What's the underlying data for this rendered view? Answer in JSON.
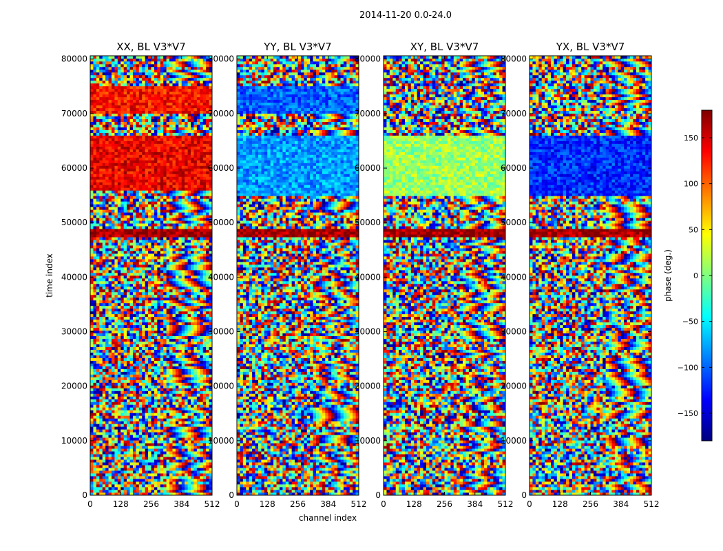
{
  "figure": {
    "suptitle": "2014-11-20 0.0-24.0"
  },
  "colormap_stops": [
    "#00007f",
    "#0000ff",
    "#007fff",
    "#00ffff",
    "#7fff7f",
    "#ffff00",
    "#ff7f00",
    "#ff0000",
    "#7f0000"
  ],
  "colorbar": {
    "label": "phase (deg.)",
    "range": [
      -180,
      180
    ],
    "ticks": [
      -150,
      -100,
      -50,
      0,
      50,
      100,
      150
    ],
    "tick_labels": [
      "−150",
      "−100",
      "−50",
      "0",
      "50",
      "100",
      "150"
    ]
  },
  "chart_data": [
    {
      "type": "heatmap",
      "title": "XX, BL V3*V7",
      "xlabel": "channel index",
      "ylabel": "time index",
      "xlim": [
        0,
        512
      ],
      "ylim": [
        0,
        80600
      ],
      "xticks": [
        0,
        128,
        256,
        384,
        512
      ],
      "yticks": [
        0,
        10000,
        20000,
        30000,
        40000,
        50000,
        60000,
        70000,
        80000
      ],
      "value_range_deg": [
        -180,
        180
      ],
      "dominant_bands": [
        {
          "t_range": [
            47500,
            49000
          ],
          "phase_deg": 170
        },
        {
          "t_range": [
            56000,
            66000
          ],
          "phase_deg": 140
        },
        {
          "t_range": [
            70000,
            75000
          ],
          "phase_deg": 130
        }
      ]
    },
    {
      "type": "heatmap",
      "title": "YY, BL V3*V7",
      "xlabel": "channel index",
      "ylabel": "",
      "xlim": [
        0,
        512
      ],
      "ylim": [
        0,
        80600
      ],
      "xticks": [
        0,
        128,
        256,
        384,
        512
      ],
      "yticks": [
        0,
        10000,
        20000,
        30000,
        40000,
        50000,
        60000,
        70000,
        80000
      ],
      "value_range_deg": [
        -180,
        180
      ],
      "dominant_bands": [
        {
          "t_range": [
            47500,
            49000
          ],
          "phase_deg": 170
        },
        {
          "t_range": [
            55000,
            66000
          ],
          "phase_deg": -80
        },
        {
          "t_range": [
            70000,
            75000
          ],
          "phase_deg": -100
        }
      ]
    },
    {
      "type": "heatmap",
      "title": "XY, BL V3*V7",
      "xlabel": "channel index",
      "ylabel": "",
      "xlim": [
        0,
        512
      ],
      "ylim": [
        0,
        80600
      ],
      "xticks": [
        0,
        128,
        256,
        384,
        512
      ],
      "yticks": [
        0,
        10000,
        20000,
        30000,
        40000,
        50000,
        60000,
        70000,
        80000
      ],
      "value_range_deg": [
        -180,
        180
      ],
      "dominant_bands": [
        {
          "t_range": [
            47500,
            49000
          ],
          "phase_deg": 170
        },
        {
          "t_range": [
            55000,
            66000
          ],
          "phase_deg": 10
        }
      ]
    },
    {
      "type": "heatmap",
      "title": "YX, BL V3*V7",
      "xlabel": "channel index",
      "ylabel": "",
      "xlim": [
        0,
        512
      ],
      "ylim": [
        0,
        80600
      ],
      "xticks": [
        0,
        128,
        256,
        384,
        512
      ],
      "yticks": [
        0,
        10000,
        20000,
        30000,
        40000,
        50000,
        60000,
        70000,
        80000
      ],
      "value_range_deg": [
        -180,
        180
      ],
      "dominant_bands": [
        {
          "t_range": [
            47500,
            49000
          ],
          "phase_deg": 170
        },
        {
          "t_range": [
            55000,
            66000
          ],
          "phase_deg": -120
        }
      ]
    }
  ]
}
